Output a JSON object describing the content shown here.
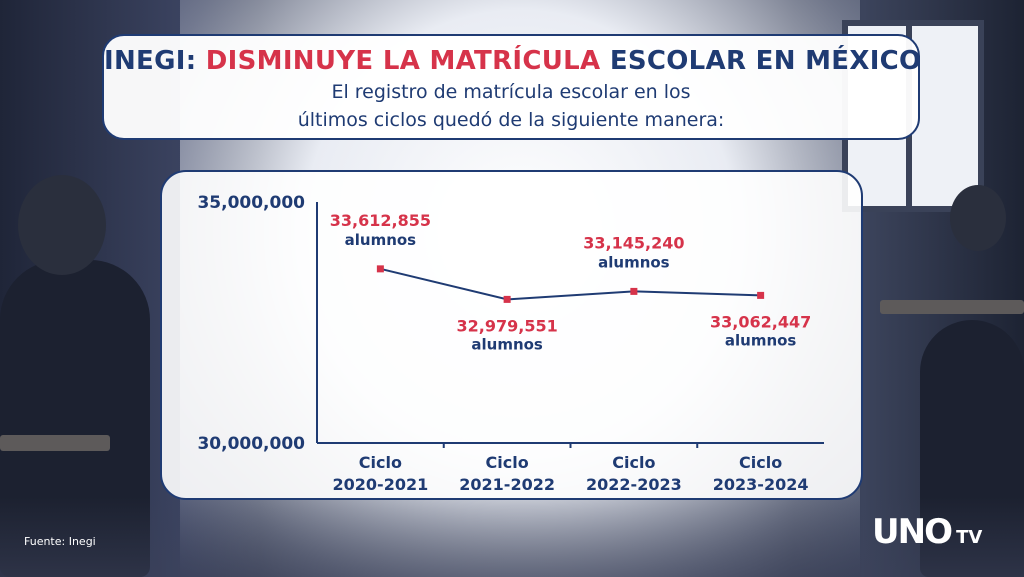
{
  "header": {
    "title_prefix": "INEGI:",
    "title_highlight": "DISMINUYE LA MATRÍCULA",
    "title_suffix": "ESCOLAR EN MÉXICO",
    "subtitle_line1": "El registro de matrícula escolar en los",
    "subtitle_line2": "últimos ciclos quedó de la siguiente manera:"
  },
  "colors": {
    "navy": "#1f3b73",
    "red": "#d6334a"
  },
  "chart_data": {
    "type": "line",
    "categories": [
      [
        "Ciclo",
        "2020-2021"
      ],
      [
        "Ciclo",
        "2021-2022"
      ],
      [
        "Ciclo",
        "2022-2023"
      ],
      [
        "Ciclo",
        "2023-2024"
      ]
    ],
    "values": [
      33612855,
      32979551,
      33145240,
      33062447
    ],
    "value_labels": [
      "33,612,855",
      "32,979,551",
      "33,145,240",
      "33,062,447"
    ],
    "unit_label": "alumnos",
    "label_positions": [
      "above",
      "below",
      "above",
      "below"
    ],
    "ylim": [
      30000000,
      35000000
    ],
    "yticks": [
      {
        "value": 35000000,
        "label": "35,000,000"
      },
      {
        "value": 30000000,
        "label": "30,000,000"
      }
    ],
    "grid": false
  },
  "footer": {
    "source": "Fuente: Inegi",
    "logo_main": "UNO",
    "logo_tv": "TV"
  }
}
